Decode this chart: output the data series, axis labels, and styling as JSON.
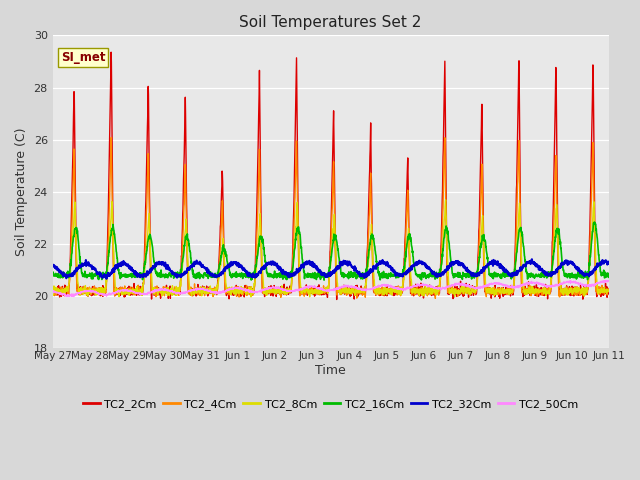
{
  "title": "Soil Temperatures Set 2",
  "xlabel": "Time",
  "ylabel": "Soil Temperature (C)",
  "ylim": [
    18,
    30
  ],
  "annotation": "SI_met",
  "x_tick_labels": [
    "May 27",
    "May 28",
    "May 29",
    "May 30",
    "May 31",
    "Jun 1",
    "Jun 2",
    "Jun 3",
    "Jun 4",
    "Jun 5",
    "Jun 6",
    "Jun 7",
    "Jun 8",
    "Jun 9",
    "Jun 10",
    "Jun 11"
  ],
  "series_colors": [
    "#dd0000",
    "#ff8800",
    "#dddd00",
    "#00bb00",
    "#0000cc",
    "#ff88ff"
  ],
  "series_names": [
    "TC2_2Cm",
    "TC2_4Cm",
    "TC2_8Cm",
    "TC2_16Cm",
    "TC2_32Cm",
    "TC2_50Cm"
  ],
  "series_lw": [
    1.0,
    1.0,
    1.0,
    1.2,
    1.5,
    1.0
  ],
  "yticks": [
    18,
    20,
    22,
    24,
    26,
    28,
    30
  ],
  "n_days": 15,
  "pts_per_day": 144,
  "fig_bg": "#d8d8d8",
  "ax_bg": "#e8e8e8"
}
